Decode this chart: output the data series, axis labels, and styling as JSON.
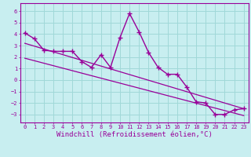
{
  "xlabel": "Windchill (Refroidissement éolien,°C)",
  "ylabel": "",
  "bg_color": "#c8eef0",
  "line_color": "#990099",
  "grid_color": "#a0d8d8",
  "xlim": [
    -0.5,
    23.5
  ],
  "ylim": [
    -3.7,
    6.7
  ],
  "xticks": [
    0,
    1,
    2,
    3,
    4,
    5,
    6,
    7,
    8,
    9,
    10,
    11,
    12,
    13,
    14,
    15,
    16,
    17,
    18,
    19,
    20,
    21,
    22,
    23
  ],
  "yticks": [
    -3,
    -2,
    -1,
    0,
    1,
    2,
    3,
    4,
    5,
    6
  ],
  "data_x": [
    0,
    1,
    2,
    3,
    4,
    5,
    6,
    7,
    8,
    9,
    10,
    11,
    12,
    13,
    14,
    15,
    16,
    17,
    18,
    19,
    20,
    21,
    22,
    23
  ],
  "data_y": [
    4.1,
    3.6,
    2.6,
    2.5,
    2.5,
    2.5,
    1.6,
    1.1,
    2.2,
    1.1,
    3.7,
    5.8,
    4.2,
    2.4,
    1.1,
    0.5,
    0.5,
    -0.6,
    -1.9,
    -2.0,
    -3.0,
    -3.0,
    -2.6,
    -2.5
  ],
  "trend1_x": [
    0,
    23
  ],
  "trend1_y": [
    3.2,
    -2.5
  ],
  "trend2_x": [
    0,
    23
  ],
  "trend2_y": [
    1.9,
    -3.1
  ],
  "tick_fontsize": 5.0,
  "label_fontsize": 6.5
}
